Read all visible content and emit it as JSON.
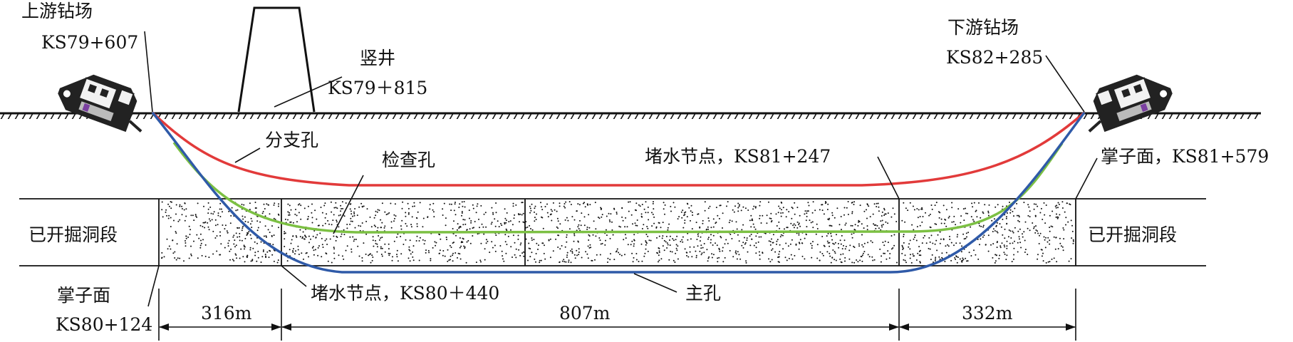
{
  "labels": {
    "upstream_site": "上游钻场",
    "upstream_station": "KS79+607",
    "downstream_site": "下游钻场",
    "downstream_station": "KS82+285",
    "shaft": "竖井",
    "shaft_station": "KS79＋815",
    "branch_hole": "分支孔",
    "check_hole": "检查孔",
    "main_hole": "主孔",
    "plug_node_right": "堵水节点，KS81+247",
    "plug_node_left": "堵水节点，KS80＋440",
    "face_right": "掌子面，KS81+579",
    "face_left": "掌子面",
    "face_left_station": "KS80+124",
    "excavated_left": "已开掘洞段",
    "excavated_right": "已开掘洞段"
  },
  "dimensions": {
    "seg1": "316m",
    "seg2": "807m",
    "seg3": "332m"
  },
  "colors": {
    "branch_hole": "#e23a3a",
    "check_hole": "#7cc043",
    "main_hole": "#2f5aa8",
    "line": "#111111"
  }
}
